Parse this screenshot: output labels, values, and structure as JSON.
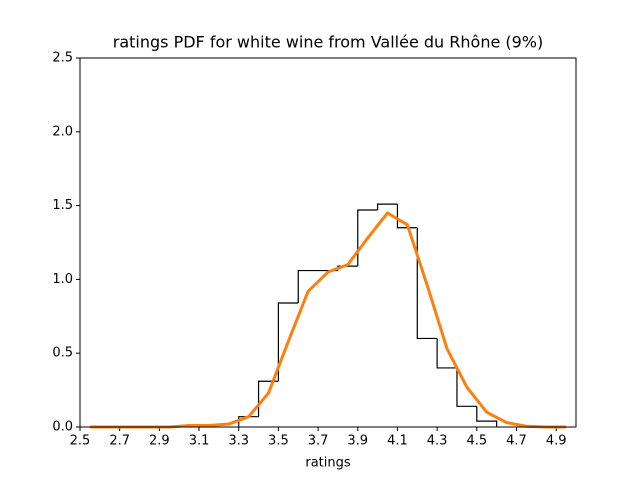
{
  "chart_data": {
    "type": "histogram",
    "title": "ratings PDF for white wine from Vallée du Rhône (9%)",
    "xlabel": "ratings",
    "bins": [
      3.3,
      3.4,
      3.5,
      3.6,
      3.7,
      3.8,
      3.9,
      4.0,
      4.1,
      4.2,
      4.3,
      4.4,
      4.5,
      4.6
    ],
    "counts": [
      0.07,
      0.31,
      0.84,
      1.06,
      1.06,
      1.09,
      1.47,
      1.51,
      1.35,
      0.6,
      0.4,
      0.14,
      0.04
    ],
    "color": "#000000",
    "line": {
      "color": "#ff7f0e",
      "x": [
        2.55,
        2.65,
        2.75,
        2.85,
        2.95,
        3.05,
        3.15,
        3.25,
        3.35,
        3.45,
        3.55,
        3.65,
        3.75,
        3.85,
        3.95,
        4.05,
        4.15,
        4.25,
        4.35,
        4.45,
        4.55,
        4.65,
        4.75,
        4.85,
        4.95
      ],
      "values": [
        0,
        0,
        0,
        0,
        0,
        0.01,
        0.01,
        0.02,
        0.07,
        0.23,
        0.58,
        0.92,
        1.05,
        1.1,
        1.28,
        1.45,
        1.37,
        0.96,
        0.53,
        0.27,
        0.1,
        0.03,
        0.005,
        0,
        0
      ]
    },
    "xlim": [
      2.5,
      5.0
    ],
    "xticks": [
      2.5,
      2.7,
      2.9,
      3.1,
      3.3,
      3.5,
      3.7,
      3.9,
      4.1,
      4.3,
      4.5,
      4.7,
      4.9
    ],
    "ylim": [
      0,
      2.5
    ],
    "yticks": [
      {
        "value": 0,
        "label": "0.0"
      },
      0.5,
      {
        "value": 1,
        "label": "1.0"
      },
      1.5,
      {
        "value": 2,
        "label": "2.0"
      },
      2.5
    ]
  }
}
